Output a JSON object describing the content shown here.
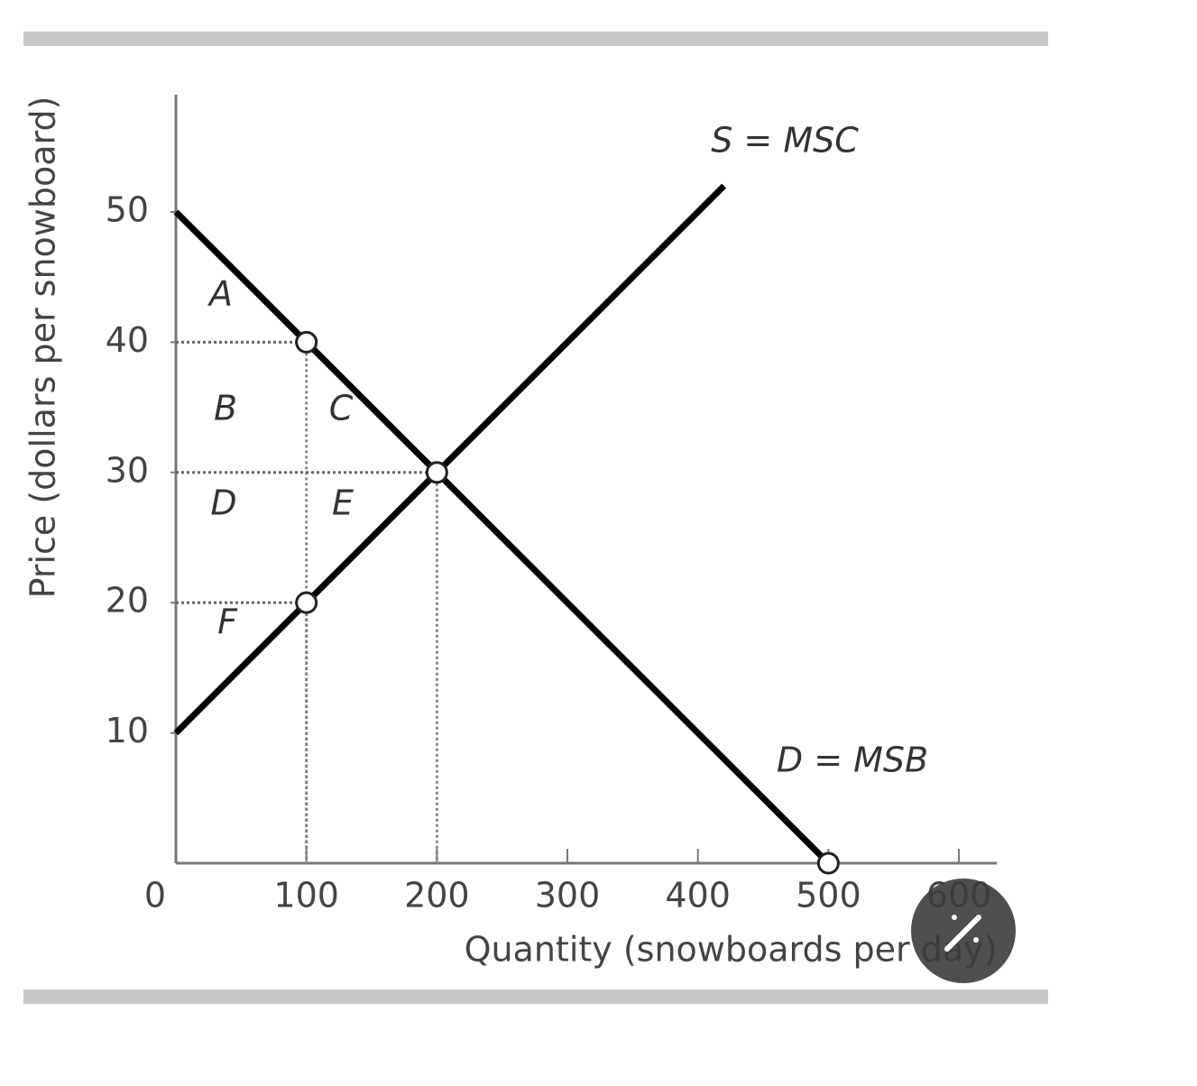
{
  "chart_data": {
    "type": "line",
    "x_label": "Quantity (snowboards per day)",
    "y_label": "Price (dollars per snowboard)",
    "series": [
      {
        "name": "S = MSC",
        "color": "#000000",
        "x": [
          0,
          100,
          200,
          420
        ],
        "values": [
          10,
          20,
          30,
          52
        ]
      },
      {
        "name": "D = MSB",
        "color": "#000000",
        "x": [
          0,
          100,
          200,
          500
        ],
        "values": [
          50,
          40,
          30,
          0
        ]
      }
    ],
    "markers": {
      "x": [
        100,
        200,
        100,
        500
      ],
      "values": [
        40,
        30,
        20,
        0
      ]
    },
    "annotations": [
      "A",
      "B",
      "C",
      "D",
      "E",
      "F"
    ],
    "xlim": [
      0,
      629
    ],
    "ylim": [
      0,
      59
    ],
    "xticks": [
      0,
      100,
      200,
      300,
      400,
      500,
      600
    ],
    "yticks": [
      10,
      20,
      30,
      40,
      50
    ]
  }
}
